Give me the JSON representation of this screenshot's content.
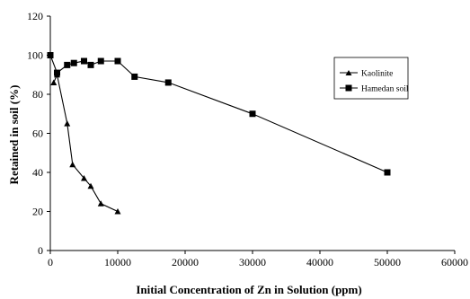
{
  "chart_data": {
    "type": "line",
    "title": "",
    "xlabel": "Initial Concentration of Zn in Solution (ppm)",
    "ylabel": "Retained in soil (%)",
    "xlim": [
      0,
      60000
    ],
    "ylim": [
      0,
      120
    ],
    "xticks": [
      0,
      10000,
      20000,
      30000,
      40000,
      50000,
      60000
    ],
    "yticks": [
      0,
      20,
      40,
      60,
      80,
      100,
      120
    ],
    "grid": false,
    "legend_position": "upper-right",
    "series": [
      {
        "name": "Kaolinite",
        "marker": "triangle",
        "x": [
          500,
          1000,
          2500,
          3300,
          5000,
          6000,
          7500,
          10000
        ],
        "y": [
          86,
          90,
          65,
          44,
          37,
          33,
          24,
          20
        ]
      },
      {
        "name": "Hamedan soil",
        "marker": "square",
        "x": [
          0,
          1000,
          2500,
          3500,
          5000,
          6000,
          7500,
          10000,
          12500,
          17500,
          30000,
          50000
        ],
        "y": [
          100,
          91,
          95,
          96,
          97,
          95,
          97,
          97,
          89,
          86,
          70,
          40
        ]
      }
    ]
  }
}
